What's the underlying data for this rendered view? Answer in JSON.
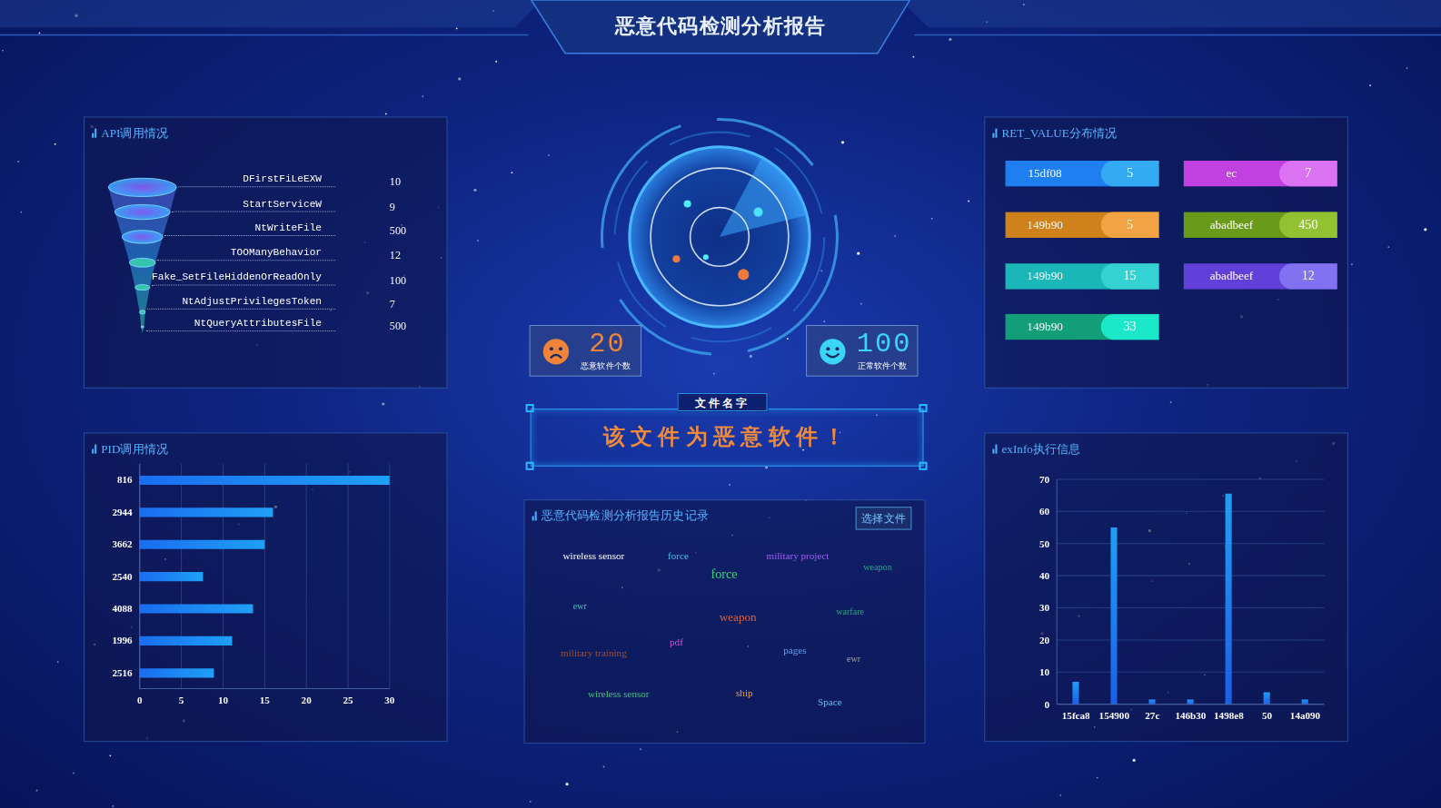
{
  "title": "恶意代码检测分析报告",
  "stats": [
    {
      "label": "恶意软件个数",
      "value": 20,
      "color": "#f0833a"
    },
    {
      "label": "正常软件个数",
      "value": 100,
      "color": "#3ad6f5"
    }
  ],
  "verdict": {
    "label": "文件名字",
    "text": "该文件为恶意软件！"
  },
  "ret_value": {
    "title": "RET_VALUE分布情况",
    "items": [
      {
        "name": "15df08",
        "value": 5,
        "colors": [
          "#1f7ef0",
          "#33aaf2"
        ]
      },
      {
        "name": "ec",
        "value": 7,
        "colors": [
          "#c040e0",
          "#da72f2"
        ]
      },
      {
        "name": "149b90",
        "value": 5,
        "colors": [
          "#cf821c",
          "#f2a445"
        ]
      },
      {
        "name": "abadbeef",
        "value": 450,
        "colors": [
          "#6a9a1a",
          "#92c232"
        ]
      },
      {
        "name": "149b90",
        "value": 15,
        "colors": [
          "#1ab6b8",
          "#34d2d2"
        ]
      },
      {
        "name": "abadbeef",
        "value": 12,
        "colors": [
          "#6040d8",
          "#8272f2"
        ]
      },
      {
        "name": "149b90",
        "value": 33,
        "colors": [
          "#129e78",
          "#1ae8c8"
        ]
      }
    ]
  },
  "history": {
    "title": "恶意代码检测分析报告历史记录",
    "button": "选择文件",
    "words": [
      "wireless sensor",
      "force",
      "military project",
      "weapon",
      "force",
      "ewr",
      "weapon",
      "warfare",
      "pdf",
      "military training",
      "pages",
      "ewr",
      "wireless sensor",
      "ship",
      "Space"
    ],
    "colors": [
      "#ffffff",
      "#4fc0e0",
      "#a060f0",
      "#2aa08a",
      "#40d080",
      "#40c0c0",
      "#e06040",
      "#30a080",
      "#d050e0",
      "#a05030",
      "#60a0f0",
      "#a0a0a0",
      "#40c080",
      "#f0a040",
      "#60c0f0"
    ]
  },
  "chart_data": [
    {
      "type": "funnel",
      "title": "API调用情况",
      "categories": [
        "DFirstFiLeEXW",
        "StartServiceW",
        "NtWriteFile",
        "TOOManyBehavior",
        "Fake_SetFileHiddenOrReadOnly",
        "NtAdjustPrivilegesToken",
        "NtQueryAttributesFile"
      ],
      "values": [
        10,
        9,
        500,
        12,
        100,
        7,
        500
      ],
      "data_labels": true
    },
    {
      "type": "bar",
      "title": "PID调用情况",
      "orientation": "horizontal",
      "categories": [
        "816",
        "2944",
        "3662",
        "2540",
        "4088",
        "1996",
        "2516"
      ],
      "values": [
        30,
        16,
        15,
        7.6,
        13.6,
        11.1,
        8.9
      ],
      "xlim": [
        0,
        30
      ],
      "xticks": [
        0,
        5,
        10,
        15,
        20,
        25,
        30
      ],
      "grid": true,
      "color": "#1fa0f5"
    },
    {
      "type": "bar",
      "title": "exInfo执行信息",
      "categories": [
        "15fca8",
        "154900",
        "27c",
        "146b30",
        "1498e8",
        "50",
        "14a090"
      ],
      "values": [
        7,
        55,
        1.5,
        1.5,
        65.5,
        3.7,
        1.5
      ],
      "ylim": [
        0,
        70
      ],
      "yticks": [
        0,
        10,
        20,
        30,
        40,
        50,
        60,
        70
      ],
      "grid": true,
      "color": "#1fa0f5"
    }
  ]
}
